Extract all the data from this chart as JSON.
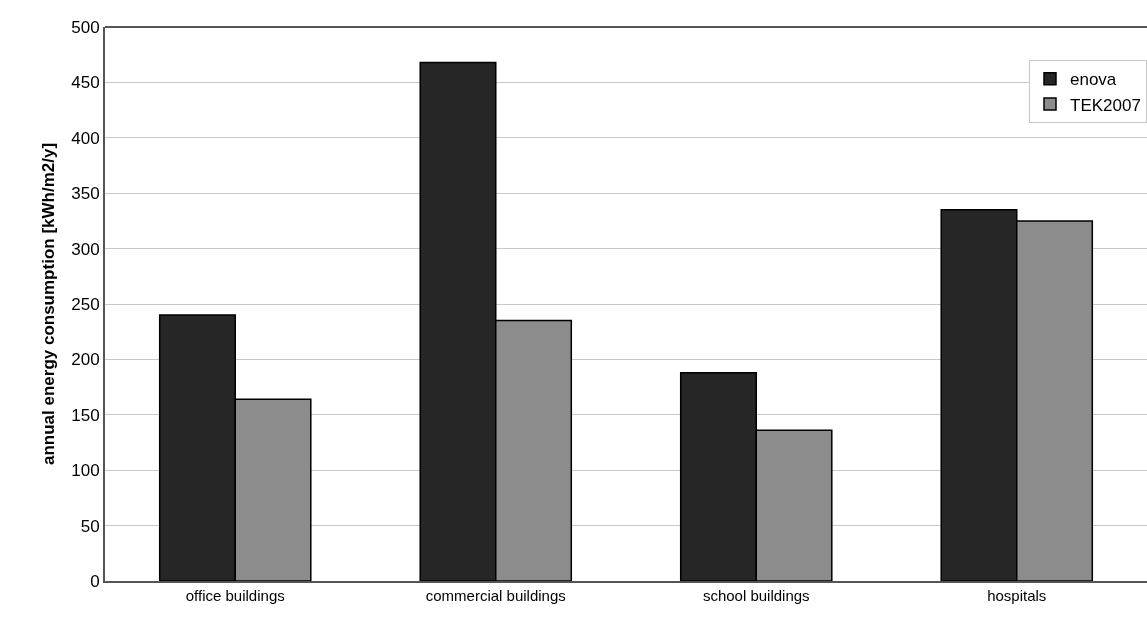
{
  "chart_data": {
    "type": "bar",
    "ylabel": "annual energy consumption [kWh/m2/y]",
    "categories": [
      "office buildings",
      "commercial buildings",
      "school buildings",
      "hospitals"
    ],
    "series": [
      {
        "name": "enova",
        "color": "#262626",
        "values": [
          240,
          468,
          188,
          335
        ]
      },
      {
        "name": "TEK2007",
        "color": "#8c8c8c",
        "values": [
          164,
          235,
          136,
          325
        ]
      }
    ],
    "ylim": [
      0,
      500
    ],
    "yticks": [
      0,
      50,
      100,
      150,
      200,
      250,
      300,
      350,
      400,
      450,
      500
    ],
    "grid": "y",
    "legend": "top right"
  }
}
